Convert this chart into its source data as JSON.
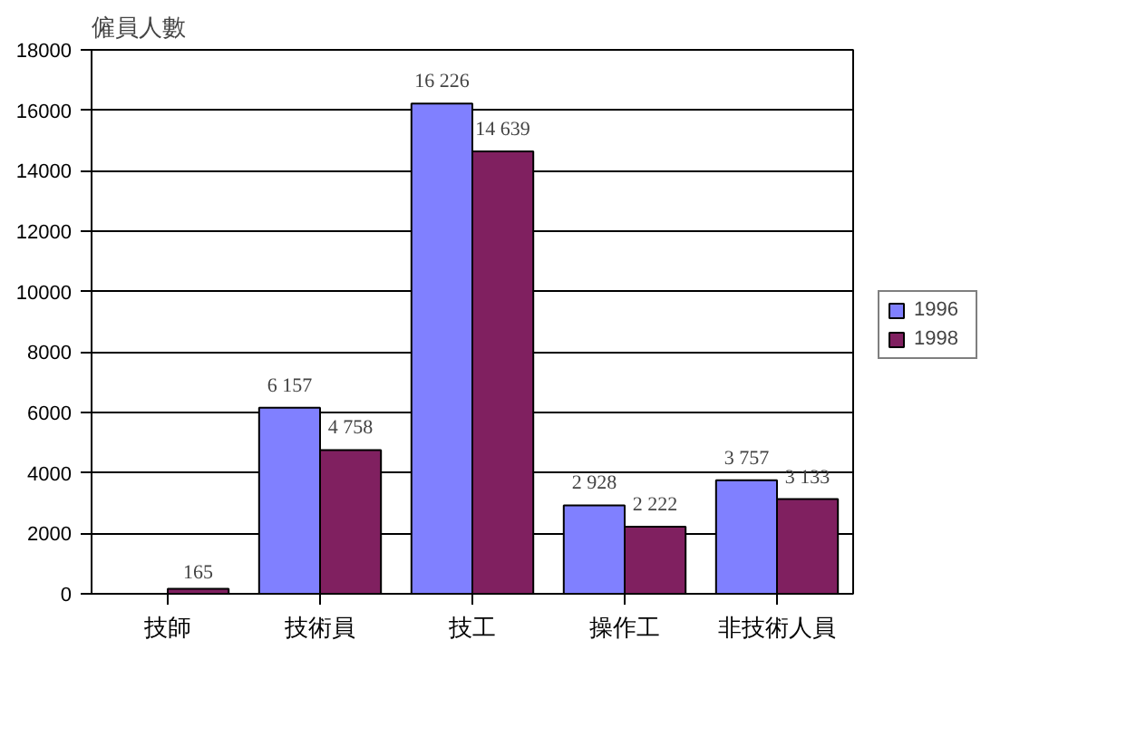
{
  "chart_data": {
    "type": "bar",
    "ylabel": "僱員人數",
    "categories": [
      "技師",
      "技術員",
      "技工",
      "操作工",
      "非技術人員"
    ],
    "series": [
      {
        "name": "1996",
        "color": "#8080ff",
        "values": [
          0,
          6157,
          16226,
          2928,
          3757
        ],
        "value_labels": [
          null,
          "6 157",
          "16 226",
          "2 928",
          "3 757"
        ]
      },
      {
        "name": "1998",
        "color": "#802060",
        "values": [
          165,
          4758,
          14639,
          2222,
          3133
        ],
        "value_labels": [
          "165",
          "4 758",
          "14 639",
          "2 222",
          "3 133"
        ]
      }
    ],
    "ylim": [
      0,
      18000
    ],
    "yticks": [
      0,
      2000,
      4000,
      6000,
      8000,
      10000,
      12000,
      14000,
      16000,
      18000
    ],
    "grid": "y",
    "legend": "right"
  }
}
